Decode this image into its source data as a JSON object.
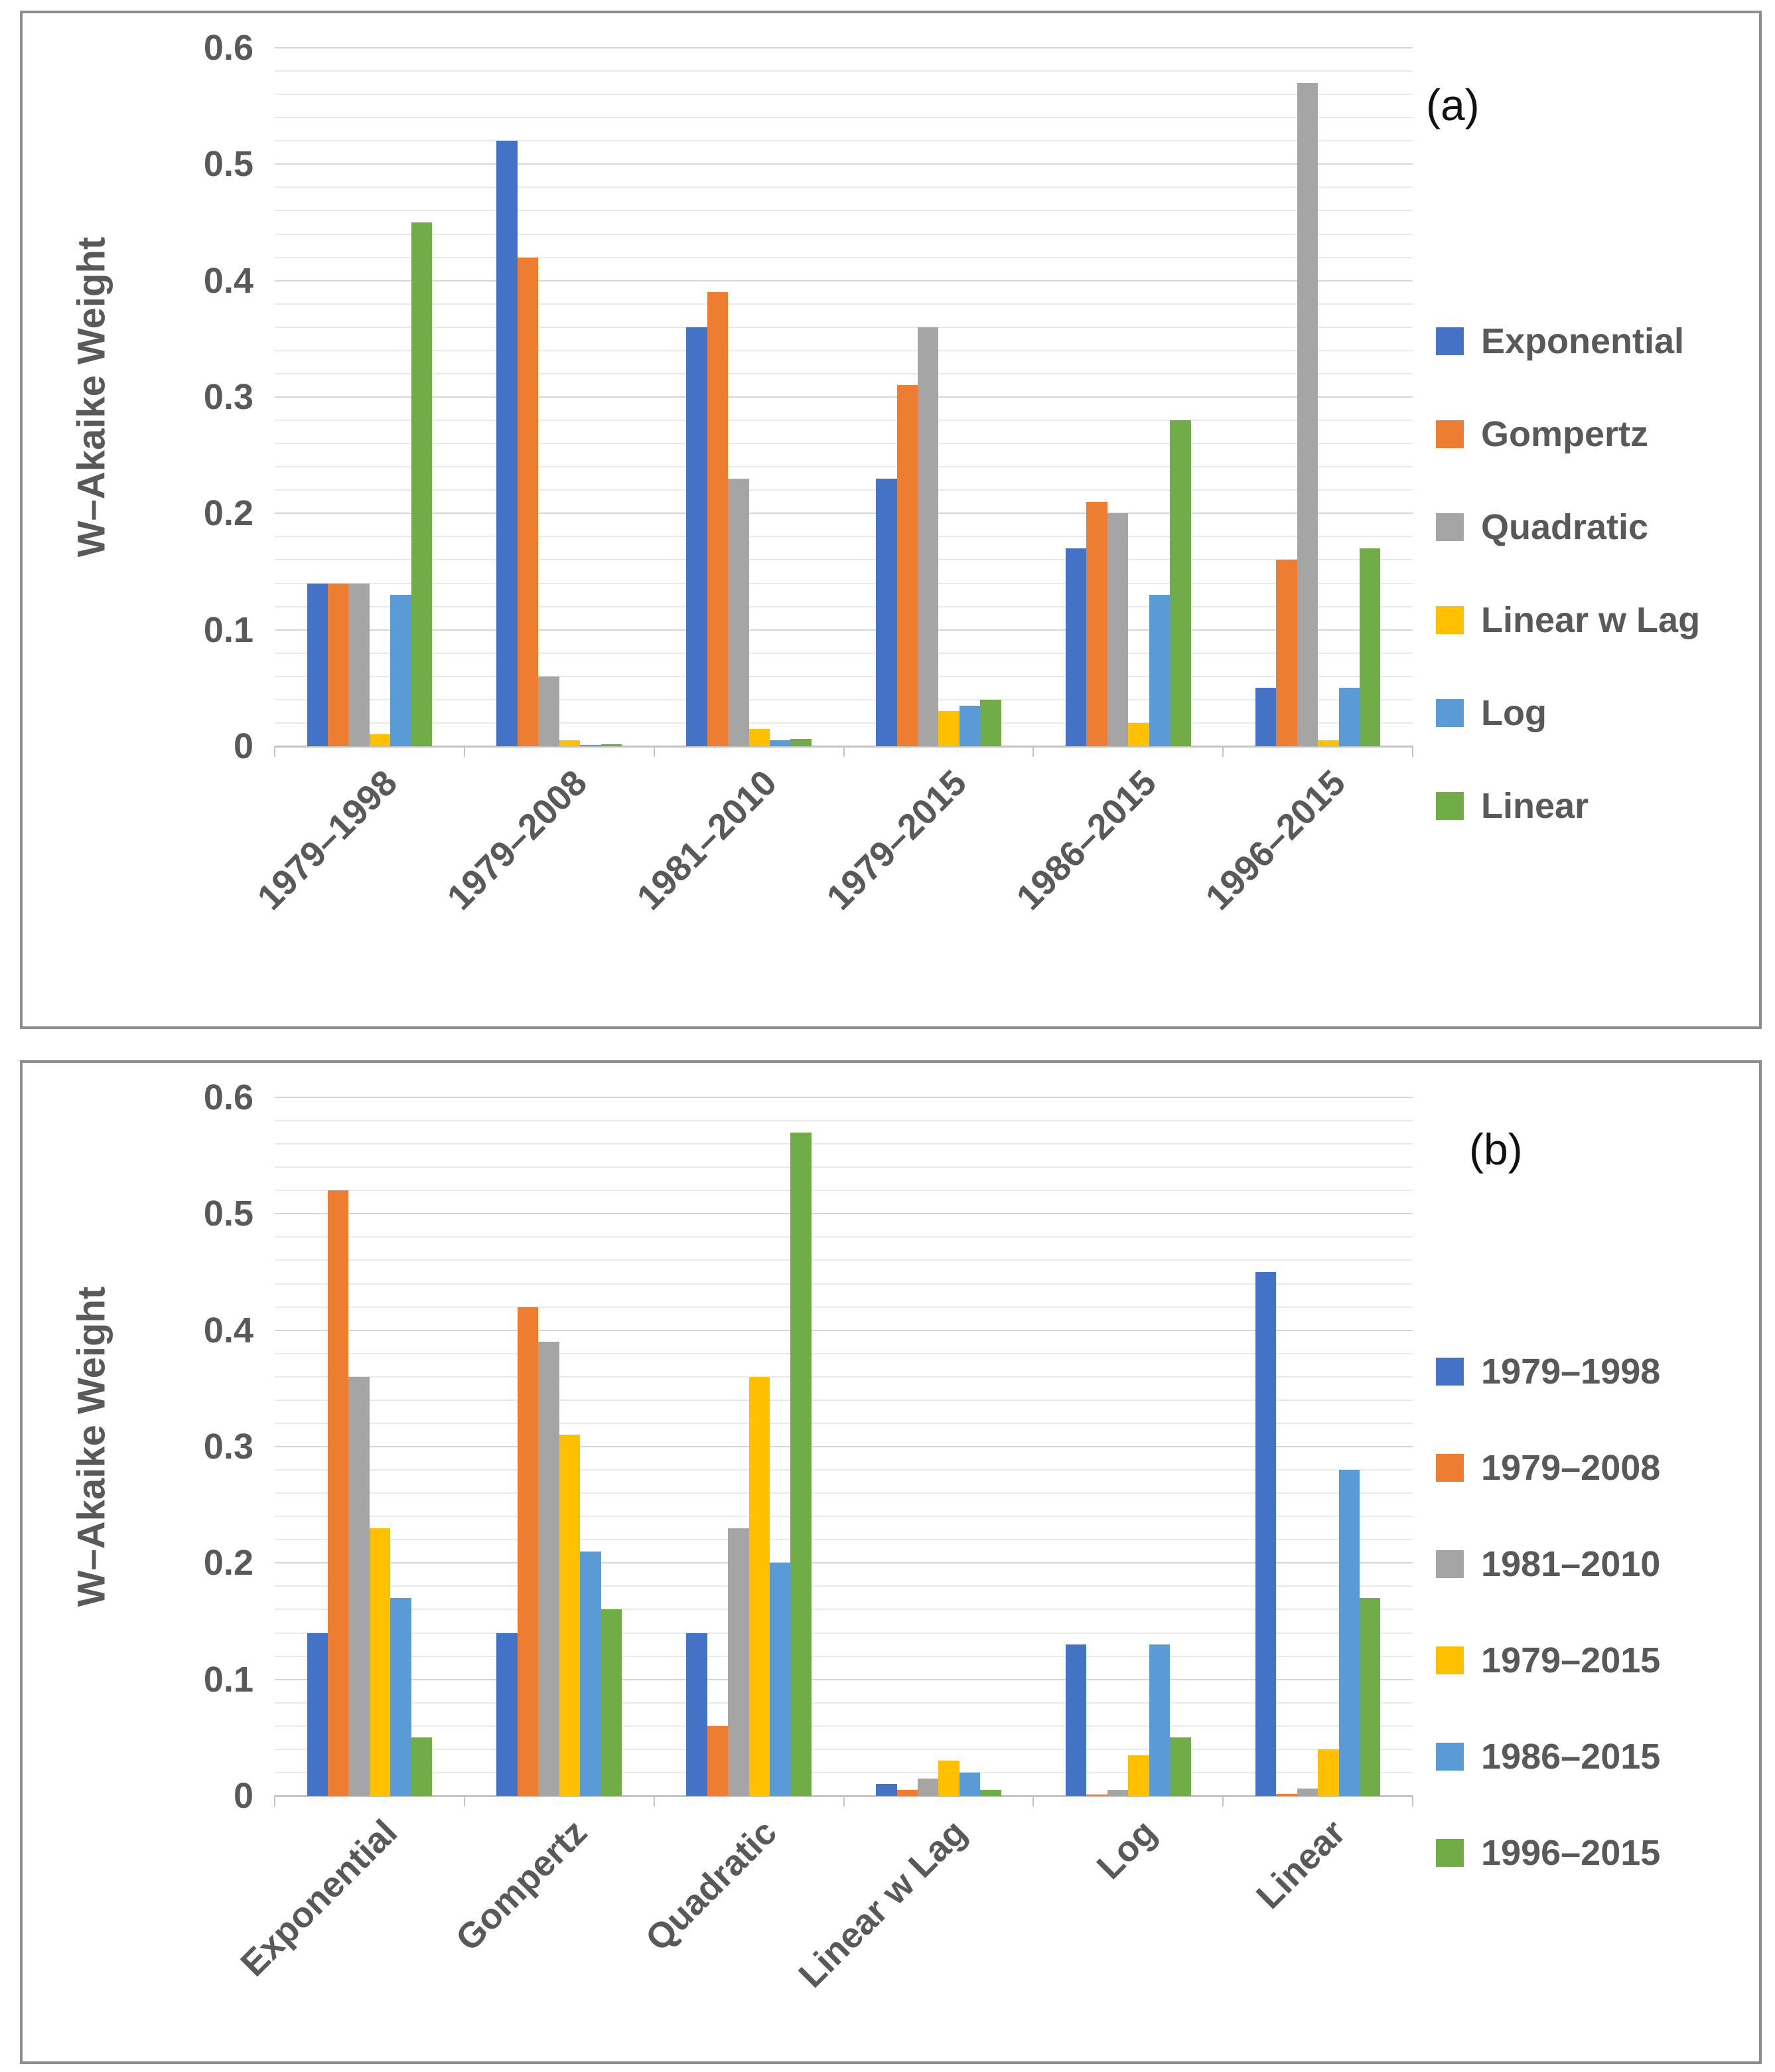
{
  "figure": {
    "y_axis_title": "W–Akaike Weight",
    "y_tick_labels": [
      "0.6",
      "0.5",
      "0.4",
      "0.3",
      "0.2",
      "0.1",
      "0"
    ],
    "palette": {
      "blue": "#4472C4",
      "orange": "#ED7D31",
      "gray": "#A5A5A5",
      "yellow": "#FFC000",
      "light_blue": "#5B9BD5",
      "green": "#70AD47"
    }
  },
  "chart_data": [
    {
      "type": "bar",
      "panel_label": "(a)",
      "ylabel": "W–Akaike Weight",
      "xlabel": "",
      "ylim": [
        0,
        0.6
      ],
      "y_major_step": 0.1,
      "y_minor_step": 0.02,
      "grid": "horizontal",
      "legend_position": "right",
      "categories": [
        "1979–1998",
        "1979–2008",
        "1981–2010",
        "1979–2015",
        "1986–2015",
        "1996–2015"
      ],
      "series": [
        {
          "name": "Exponential",
          "color": "#4472C4",
          "values": [
            0.14,
            0.52,
            0.36,
            0.23,
            0.17,
            0.05
          ]
        },
        {
          "name": "Gompertz",
          "color": "#ED7D31",
          "values": [
            0.14,
            0.42,
            0.39,
            0.31,
            0.21,
            0.16
          ]
        },
        {
          "name": "Quadratic",
          "color": "#A5A5A5",
          "values": [
            0.14,
            0.06,
            0.23,
            0.36,
            0.2,
            0.57
          ]
        },
        {
          "name": "Linear w Lag",
          "color": "#FFC000",
          "values": [
            0.01,
            0.005,
            0.015,
            0.03,
            0.02,
            0.005
          ]
        },
        {
          "name": "Log",
          "color": "#5B9BD5",
          "values": [
            0.13,
            0.001,
            0.005,
            0.035,
            0.13,
            0.05
          ]
        },
        {
          "name": "Linear",
          "color": "#70AD47",
          "values": [
            0.45,
            0.002,
            0.006,
            0.04,
            0.28,
            0.17
          ]
        }
      ]
    },
    {
      "type": "bar",
      "panel_label": "(b)",
      "ylabel": "W–Akaike Weight",
      "xlabel": "",
      "ylim": [
        0,
        0.6
      ],
      "y_major_step": 0.1,
      "y_minor_step": 0.02,
      "grid": "horizontal",
      "legend_position": "right",
      "categories": [
        "Exponential",
        "Gompertz",
        "Quadratic",
        "Linear w Lag",
        "Log",
        "Linear"
      ],
      "series": [
        {
          "name": "1979–1998",
          "color": "#4472C4",
          "values": [
            0.14,
            0.14,
            0.14,
            0.01,
            0.13,
            0.45
          ]
        },
        {
          "name": "1979–2008",
          "color": "#ED7D31",
          "values": [
            0.52,
            0.42,
            0.06,
            0.005,
            0.001,
            0.002
          ]
        },
        {
          "name": "1981–2010",
          "color": "#A5A5A5",
          "values": [
            0.36,
            0.39,
            0.23,
            0.015,
            0.005,
            0.006
          ]
        },
        {
          "name": "1979–2015",
          "color": "#FFC000",
          "values": [
            0.23,
            0.31,
            0.36,
            0.03,
            0.035,
            0.04
          ]
        },
        {
          "name": "1986–2015",
          "color": "#5B9BD5",
          "values": [
            0.17,
            0.21,
            0.2,
            0.02,
            0.13,
            0.28
          ]
        },
        {
          "name": "1996–2015",
          "color": "#70AD47",
          "values": [
            0.05,
            0.16,
            0.57,
            0.005,
            0.05,
            0.17
          ]
        }
      ]
    }
  ]
}
